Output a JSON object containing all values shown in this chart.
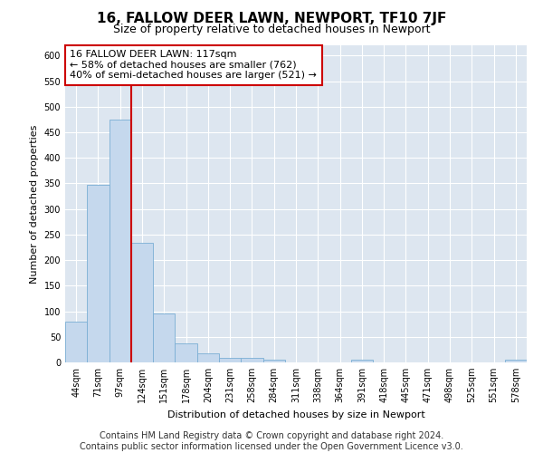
{
  "title": "16, FALLOW DEER LAWN, NEWPORT, TF10 7JF",
  "subtitle": "Size of property relative to detached houses in Newport",
  "xlabel": "Distribution of detached houses by size in Newport",
  "ylabel": "Number of detached properties",
  "categories": [
    "44sqm",
    "71sqm",
    "97sqm",
    "124sqm",
    "151sqm",
    "178sqm",
    "204sqm",
    "231sqm",
    "258sqm",
    "284sqm",
    "311sqm",
    "338sqm",
    "364sqm",
    "391sqm",
    "418sqm",
    "445sqm",
    "471sqm",
    "498sqm",
    "525sqm",
    "551sqm",
    "578sqm"
  ],
  "values": [
    80,
    347,
    474,
    234,
    96,
    38,
    17,
    8,
    8,
    5,
    0,
    0,
    0,
    5,
    0,
    0,
    0,
    0,
    0,
    0,
    5
  ],
  "bar_color": "#c5d8ed",
  "bar_edge_color": "#7bafd4",
  "marker_line_color": "#cc0000",
  "annotation_text": "16 FALLOW DEER LAWN: 117sqm\n← 58% of detached houses are smaller (762)\n40% of semi-detached houses are larger (521) →",
  "annotation_box_facecolor": "#ffffff",
  "annotation_box_edgecolor": "#cc0000",
  "ylim": [
    0,
    620
  ],
  "yticks": [
    0,
    50,
    100,
    150,
    200,
    250,
    300,
    350,
    400,
    450,
    500,
    550,
    600
  ],
  "background_color": "#dde6f0",
  "footer_text": "Contains HM Land Registry data © Crown copyright and database right 2024.\nContains public sector information licensed under the Open Government Licence v3.0.",
  "title_fontsize": 11,
  "subtitle_fontsize": 9,
  "ylabel_fontsize": 8,
  "xlabel_fontsize": 8,
  "tick_fontsize": 7,
  "footer_fontsize": 7,
  "ann_fontsize": 8
}
